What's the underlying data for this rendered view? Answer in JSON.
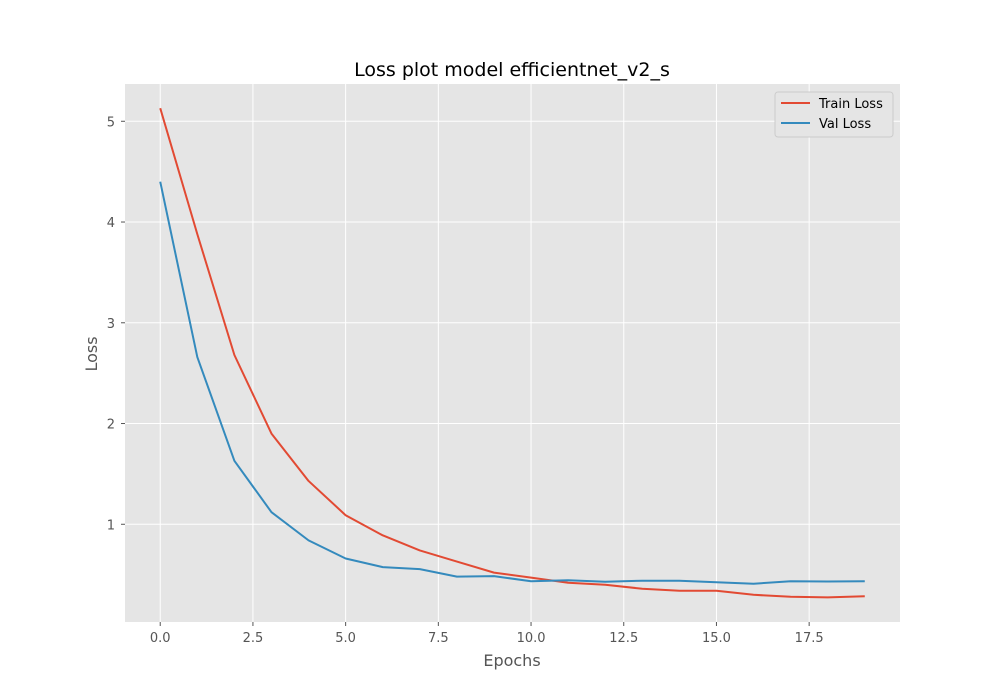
{
  "chart_data": {
    "type": "line",
    "title": "Loss plot model efficientnet_v2_s",
    "xlabel": "Epochs",
    "ylabel": "Loss",
    "x": [
      0,
      1,
      2,
      3,
      4,
      5,
      6,
      7,
      8,
      9,
      10,
      11,
      12,
      13,
      14,
      15,
      16,
      17,
      18,
      19
    ],
    "series": [
      {
        "name": "Train Loss",
        "color": "#E24A33",
        "values": [
          5.13,
          3.88,
          2.68,
          1.9,
          1.43,
          1.09,
          0.89,
          0.74,
          0.63,
          0.52,
          0.47,
          0.42,
          0.4,
          0.36,
          0.34,
          0.34,
          0.3,
          0.28,
          0.275,
          0.285
        ]
      },
      {
        "name": "Val Loss",
        "color": "#348ABD",
        "values": [
          4.4,
          2.66,
          1.63,
          1.12,
          0.84,
          0.66,
          0.575,
          0.555,
          0.48,
          0.485,
          0.435,
          0.445,
          0.43,
          0.44,
          0.44,
          0.425,
          0.41,
          0.435,
          0.432,
          0.435
        ]
      }
    ],
    "xlim": [
      -0.95,
      19.95
    ],
    "ylim": [
      0.03,
      5.37
    ],
    "xticks": [
      0,
      2.5,
      5,
      7.5,
      10,
      12.5,
      15,
      17.5
    ],
    "xtick_labels": [
      "0.0",
      "2.5",
      "5.0",
      "7.5",
      "10.0",
      "12.5",
      "15.0",
      "17.5"
    ],
    "yticks": [
      1,
      2,
      3,
      4,
      5
    ],
    "ytick_labels": [
      "1",
      "2",
      "3",
      "4",
      "5"
    ],
    "grid": true,
    "legend_position": "top-right",
    "style": {
      "plot_background": "#E5E5E5",
      "grid_color": "#FFFFFF"
    }
  }
}
